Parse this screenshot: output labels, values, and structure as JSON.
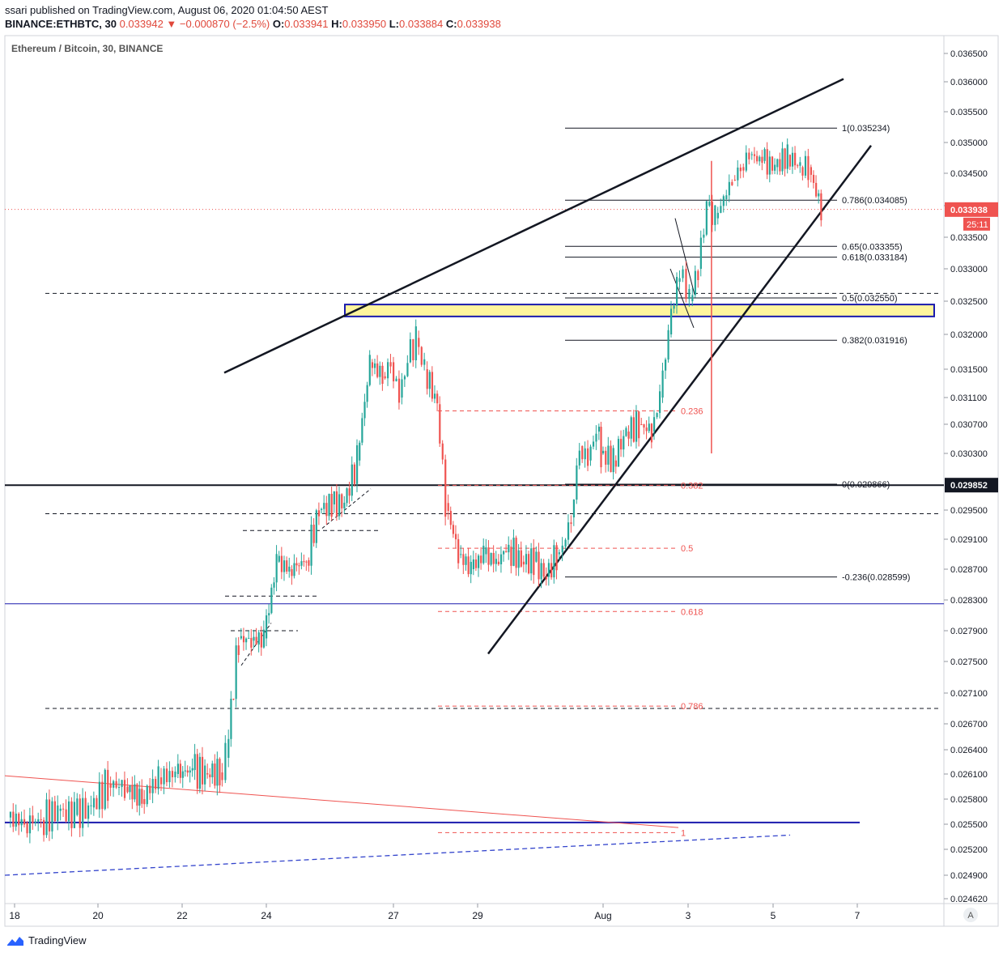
{
  "header": {
    "published": "ssari published on TradingView.com, August 06, 2020 01:04:50 AEST",
    "symbol": "BINANCE:ETHBTC, 30",
    "change": "0.033942 ▼ −0.000870 (−2.5%)",
    "ohlc": {
      "o_label": "O:",
      "o": "0.033941",
      "h_label": "H:",
      "h": "0.033950",
      "l_label": "L:",
      "l": "0.033884",
      "c_label": "C:",
      "c": "0.033938"
    }
  },
  "brand": {
    "name": "TradingView",
    "icon": "tradingview-logo-icon"
  },
  "colors": {
    "up": "#26a69a",
    "down": "#ef5350",
    "zone_fill": "#fff59d",
    "zone_border": "#1a1aad",
    "price_label_bg": "#ef5350",
    "black_label_bg": "#131722"
  },
  "chart_data": {
    "type": "candlestick",
    "title": "Ethereum / Bitcoin, 30, BINANCE",
    "y_ticks": [
      "0.036500",
      "0.036000",
      "0.035500",
      "0.035000",
      "0.034500",
      "0.034000",
      "0.033500",
      "0.033000",
      "0.032500",
      "0.032000",
      "0.031500",
      "0.031100",
      "0.030700",
      "0.030300",
      "0.029500",
      "0.029100",
      "0.028700",
      "0.028300",
      "0.027900",
      "0.027500",
      "0.027100",
      "0.026700",
      "0.026400",
      "0.026100",
      "0.025800",
      "0.025500",
      "0.025200",
      "0.024900",
      "0.024620"
    ],
    "x_ticks": [
      "18",
      "20",
      "22",
      "24",
      "27",
      "29",
      "Aug",
      "3",
      "5",
      "7"
    ],
    "ylim": [
      0.02462,
      0.0369
    ],
    "scale_button": "A",
    "price_close": {
      "value": "0.033938",
      "countdown": "25:11"
    },
    "price_level": {
      "value": "0.029852"
    },
    "series": [
      {
        "x": [
          "17.9",
          "18.3",
          "18.7",
          "19.1",
          "19.5",
          "19.9",
          "20.3",
          "20.7",
          "21.1",
          "21.5",
          "21.9",
          "22.3",
          "22.6",
          "22.95",
          "23.1",
          "23.4",
          "23.7",
          "24",
          "24.3",
          "24.6",
          "25",
          "25.3",
          "25.6",
          "25.9",
          "26.2",
          "26.5",
          "26.8",
          "27",
          "27.2",
          "27.4",
          "27.6",
          "27.8",
          "28.1",
          "28.3",
          "28.6",
          "28.9",
          "29.2",
          "29.5",
          "29.8",
          "30.1",
          "30.4",
          "30.7",
          "30.95",
          "31.1",
          "31.3",
          "31.5",
          "31.7",
          "31.9",
          "Aug 1",
          "1.3",
          "1.6",
          "1.9",
          "2.2",
          "2.4",
          "2.6",
          "2.8",
          "2.95",
          "3.1",
          "3.3",
          "3.5",
          "3.7",
          "3.9",
          "4.1",
          "4.3",
          "4.5",
          "4.8",
          "5.1",
          "5.4",
          "5.7",
          "5.9"
        ],
        "close": [
          0.02552,
          0.02555,
          0.02566,
          0.02561,
          0.0257,
          0.02598,
          0.02595,
          0.0258,
          0.02606,
          0.0261,
          0.02615,
          0.02611,
          0.02612,
          0.0263,
          0.0278,
          0.02777,
          0.0278,
          0.0288,
          0.0287,
          0.02882,
          0.0295,
          0.02958,
          0.0296,
          0.0302,
          0.0316,
          0.0314,
          0.0316,
          0.0311,
          0.0316,
          0.03195,
          0.0315,
          0.031,
          0.0296,
          0.0289,
          0.0287,
          0.0289,
          0.0288,
          0.029,
          0.0288,
          0.0288,
          0.0286,
          0.0289,
          0.029,
          0.0294,
          0.0304,
          0.0302,
          0.0306,
          0.0303,
          0.0302,
          0.0306,
          0.0307,
          0.0306,
          0.0311,
          0.032,
          0.0328,
          0.033,
          0.0325,
          0.033,
          0.034,
          0.0338,
          0.0341,
          0.0344,
          0.0346,
          0.0348,
          0.0347,
          0.0346,
          0.0348,
          0.0346,
          0.0346,
          0.03394
        ]
      }
    ],
    "annotations": {
      "fib_black": [
        {
          "label": "1(0.035234)",
          "value": 0.035234
        },
        {
          "label": "0.786(0.034085)",
          "value": 0.034085
        },
        {
          "label": "0.65(0.033355)",
          "value": 0.033355
        },
        {
          "label": "0.618(0.033184)",
          "value": 0.033184
        },
        {
          "label": "0.5(0.032550)",
          "value": 0.03255
        },
        {
          "label": "0.382(0.031916)",
          "value": 0.031916
        },
        {
          "label": "0(0.029866)",
          "value": 0.029866
        },
        {
          "label": "-0.236(0.028599)",
          "value": 0.028599
        }
      ],
      "fib_red": [
        {
          "label": "0.236",
          "value": 0.0309
        },
        {
          "label": "0.382",
          "value": 0.02985
        },
        {
          "label": "0.5",
          "value": 0.02898
        },
        {
          "label": "0.618",
          "value": 0.02815
        },
        {
          "label": "0.786",
          "value": 0.02693
        },
        {
          "label": "1",
          "value": 0.0254
        }
      ],
      "zone": {
        "low": 0.03227,
        "high": 0.03245
      }
    }
  }
}
